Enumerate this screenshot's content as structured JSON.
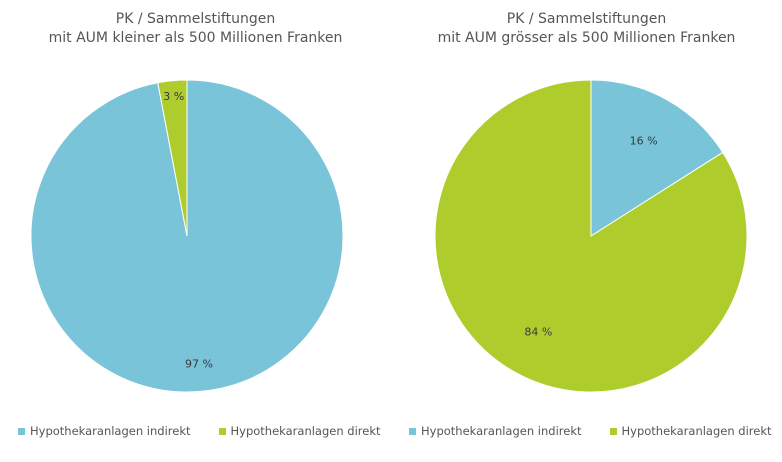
{
  "colors": {
    "indirekt": "#79c4d9",
    "direkt": "#aecd2d"
  },
  "chart_data": [
    {
      "type": "pie",
      "title_lines": [
        "PK / Sammelstiftungen",
        "mit AUM kleiner als 500 Millionen Franken"
      ],
      "slices": [
        {
          "name": "Hypothekaranlagen indirekt",
          "value": 97,
          "label": "97 %",
          "color": "#79c4d9"
        },
        {
          "name": "Hypothekaranlagen direkt",
          "value": 3,
          "label": "3 %",
          "color": "#aecd2d"
        }
      ],
      "legend": [
        "Hypothekaranlagen indirekt",
        "Hypothekaranlagen direkt"
      ],
      "legend_position": "bottom-left"
    },
    {
      "type": "pie",
      "title_lines": [
        "PK / Sammelstiftungen",
        "mit AUM grösser als 500 Millionen Franken"
      ],
      "slices": [
        {
          "name": "Hypothekaranlagen indirekt",
          "value": 16,
          "label": "16 %",
          "color": "#79c4d9"
        },
        {
          "name": "Hypothekaranlagen direkt",
          "value": 84,
          "label": "84 %",
          "color": "#aecd2d"
        }
      ],
      "legend": [
        "Hypothekaranlagen indirekt",
        "Hypothekaranlagen direkt"
      ],
      "legend_position": "bottom-left"
    }
  ]
}
